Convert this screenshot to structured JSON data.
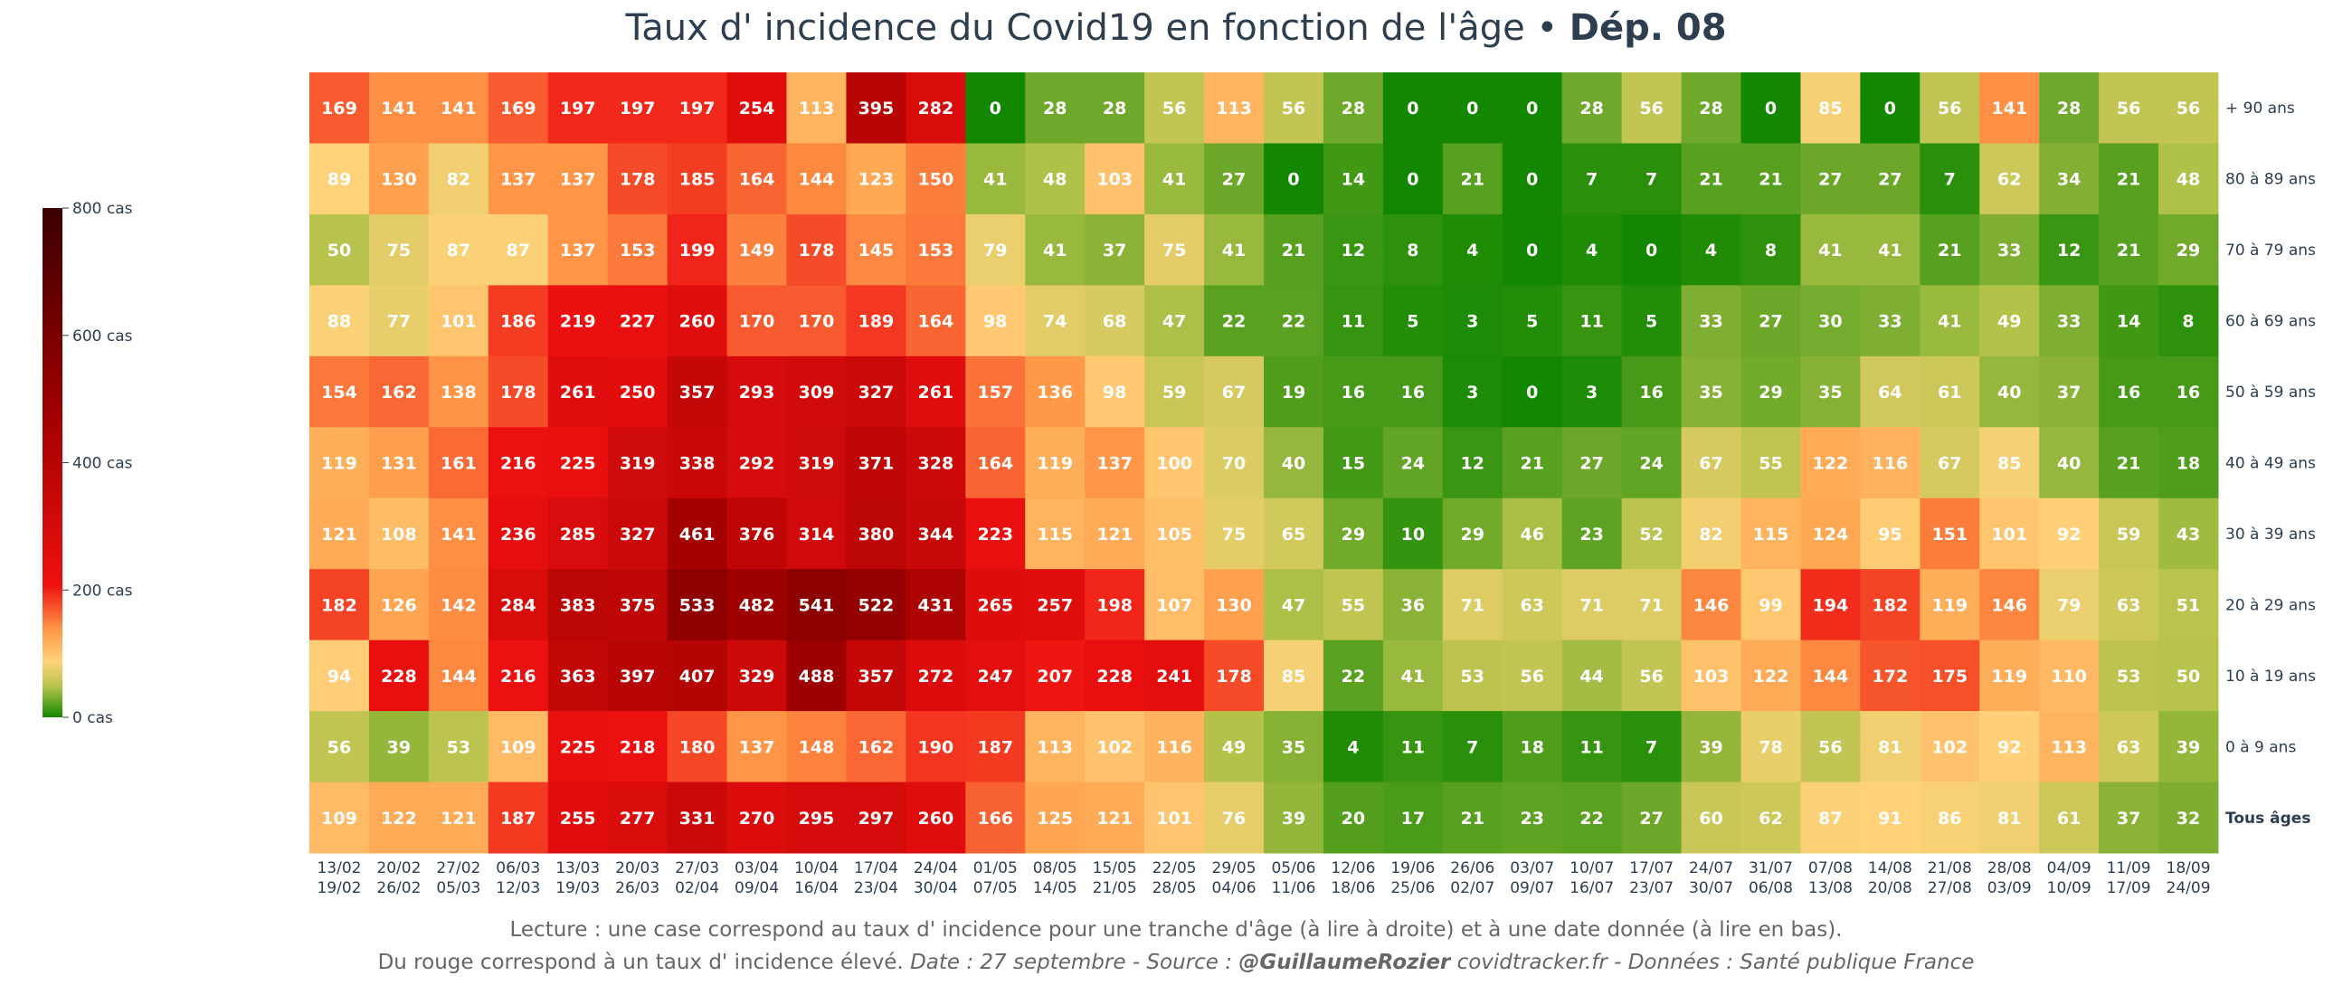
{
  "title": {
    "main": "Taux d' incidence du Covid19 en fonction de l'âge",
    "separator": " • ",
    "dept": "Dép. 08"
  },
  "footer": {
    "line1": "Lecture : une case correspond au taux d' incidence pour une tranche d'âge (à lire à droite) et à une date donnée (à lire en bas).",
    "line2_plain": "Du rouge correspond à un taux d' incidence élevé.  ",
    "line2_date": "Date : 27 septembre - Source : ",
    "line2_author": "@GuillaumeRozier",
    "line2_rest": " covidtracker.fr - Données : Santé publique France"
  },
  "colors": {
    "green": "#138700",
    "yellowgreen": "#b7c34c",
    "light": "#ffd27a",
    "orange": "#ff9a48",
    "red": "#ee1010",
    "darkred": "#8c0000",
    "darkest": "#3a0000",
    "text": "#2c3e50"
  },
  "chart_data": {
    "type": "heatmap",
    "title": "Taux d' incidence du Covid19 en fonction de l'âge • Dép. 08",
    "rows": [
      "+ 90 ans",
      "80 à 89 ans",
      "70 à 79 ans",
      "60 à 69 ans",
      "50 à 59 ans",
      "40 à 49 ans",
      "30 à 39 ans",
      "20 à 29 ans",
      "10 à 19 ans",
      "0 à 9 ans",
      "Tous âges"
    ],
    "columns": [
      {
        "start": "13/02",
        "end": "19/02"
      },
      {
        "start": "20/02",
        "end": "26/02"
      },
      {
        "start": "27/02",
        "end": "05/03"
      },
      {
        "start": "06/03",
        "end": "12/03"
      },
      {
        "start": "13/03",
        "end": "19/03"
      },
      {
        "start": "20/03",
        "end": "26/03"
      },
      {
        "start": "27/03",
        "end": "02/04"
      },
      {
        "start": "03/04",
        "end": "09/04"
      },
      {
        "start": "10/04",
        "end": "16/04"
      },
      {
        "start": "17/04",
        "end": "23/04"
      },
      {
        "start": "24/04",
        "end": "30/04"
      },
      {
        "start": "01/05",
        "end": "07/05"
      },
      {
        "start": "08/05",
        "end": "14/05"
      },
      {
        "start": "15/05",
        "end": "21/05"
      },
      {
        "start": "22/05",
        "end": "28/05"
      },
      {
        "start": "29/05",
        "end": "04/06"
      },
      {
        "start": "05/06",
        "end": "11/06"
      },
      {
        "start": "12/06",
        "end": "18/06"
      },
      {
        "start": "19/06",
        "end": "25/06"
      },
      {
        "start": "26/06",
        "end": "02/07"
      },
      {
        "start": "03/07",
        "end": "09/07"
      },
      {
        "start": "10/07",
        "end": "16/07"
      },
      {
        "start": "17/07",
        "end": "23/07"
      },
      {
        "start": "24/07",
        "end": "30/07"
      },
      {
        "start": "31/07",
        "end": "06/08"
      },
      {
        "start": "07/08",
        "end": "13/08"
      },
      {
        "start": "14/08",
        "end": "20/08"
      },
      {
        "start": "21/08",
        "end": "27/08"
      },
      {
        "start": "28/08",
        "end": "03/09"
      },
      {
        "start": "04/09",
        "end": "10/09"
      },
      {
        "start": "11/09",
        "end": "17/09"
      },
      {
        "start": "18/09",
        "end": "24/09"
      }
    ],
    "values": [
      [
        169,
        141,
        141,
        169,
        197,
        197,
        197,
        254,
        113,
        395,
        282,
        0,
        28,
        28,
        56,
        113,
        56,
        28,
        0,
        0,
        0,
        28,
        56,
        28,
        0,
        85,
        0,
        56,
        141,
        28,
        56,
        56
      ],
      [
        89,
        130,
        82,
        137,
        137,
        178,
        185,
        164,
        144,
        123,
        150,
        41,
        48,
        103,
        41,
        27,
        0,
        14,
        0,
        21,
        0,
        7,
        7,
        21,
        21,
        27,
        27,
        7,
        62,
        34,
        21,
        48
      ],
      [
        50,
        75,
        87,
        87,
        137,
        153,
        199,
        149,
        178,
        145,
        153,
        79,
        41,
        37,
        75,
        41,
        21,
        12,
        8,
        4,
        0,
        4,
        0,
        4,
        8,
        41,
        41,
        21,
        33,
        12,
        21,
        29
      ],
      [
        88,
        77,
        101,
        186,
        219,
        227,
        260,
        170,
        170,
        189,
        164,
        98,
        74,
        68,
        47,
        22,
        22,
        11,
        5,
        3,
        5,
        11,
        5,
        33,
        27,
        30,
        33,
        41,
        49,
        33,
        14,
        8
      ],
      [
        154,
        162,
        138,
        178,
        261,
        250,
        357,
        293,
        309,
        327,
        261,
        157,
        136,
        98,
        59,
        67,
        19,
        16,
        16,
        3,
        0,
        3,
        16,
        35,
        29,
        35,
        64,
        61,
        40,
        37,
        16,
        16
      ],
      [
        119,
        131,
        161,
        216,
        225,
        319,
        338,
        292,
        319,
        371,
        328,
        164,
        119,
        137,
        100,
        70,
        40,
        15,
        24,
        12,
        21,
        27,
        24,
        67,
        55,
        122,
        116,
        67,
        85,
        40,
        21,
        18
      ],
      [
        121,
        108,
        141,
        236,
        285,
        327,
        461,
        376,
        314,
        380,
        344,
        223,
        115,
        121,
        105,
        75,
        65,
        29,
        10,
        29,
        46,
        23,
        52,
        82,
        115,
        124,
        95,
        151,
        101,
        92,
        59,
        43
      ],
      [
        182,
        126,
        142,
        284,
        383,
        375,
        533,
        482,
        541,
        522,
        431,
        265,
        257,
        198,
        107,
        130,
        47,
        55,
        36,
        71,
        63,
        71,
        71,
        146,
        99,
        194,
        182,
        119,
        146,
        79,
        63,
        51
      ],
      [
        94,
        228,
        144,
        216,
        363,
        397,
        407,
        329,
        488,
        357,
        272,
        247,
        207,
        228,
        241,
        178,
        85,
        22,
        41,
        53,
        56,
        44,
        56,
        103,
        122,
        144,
        172,
        175,
        119,
        110,
        53,
        50
      ],
      [
        56,
        39,
        53,
        109,
        225,
        218,
        180,
        137,
        148,
        162,
        190,
        187,
        113,
        102,
        116,
        49,
        35,
        4,
        11,
        7,
        18,
        11,
        7,
        39,
        78,
        56,
        81,
        102,
        92,
        113,
        63,
        39
      ],
      [
        109,
        122,
        121,
        187,
        255,
        277,
        331,
        270,
        295,
        297,
        260,
        166,
        125,
        121,
        101,
        76,
        39,
        20,
        17,
        21,
        23,
        22,
        27,
        60,
        62,
        87,
        91,
        86,
        81,
        61,
        37,
        32
      ]
    ],
    "colorbar": {
      "zmin": 0,
      "zmax": 800,
      "ticks": [
        0,
        200,
        400,
        600,
        800
      ],
      "tick_labels": [
        "0 cas",
        "200 cas",
        "400 cas",
        "600 cas",
        "800 cas"
      ]
    }
  }
}
